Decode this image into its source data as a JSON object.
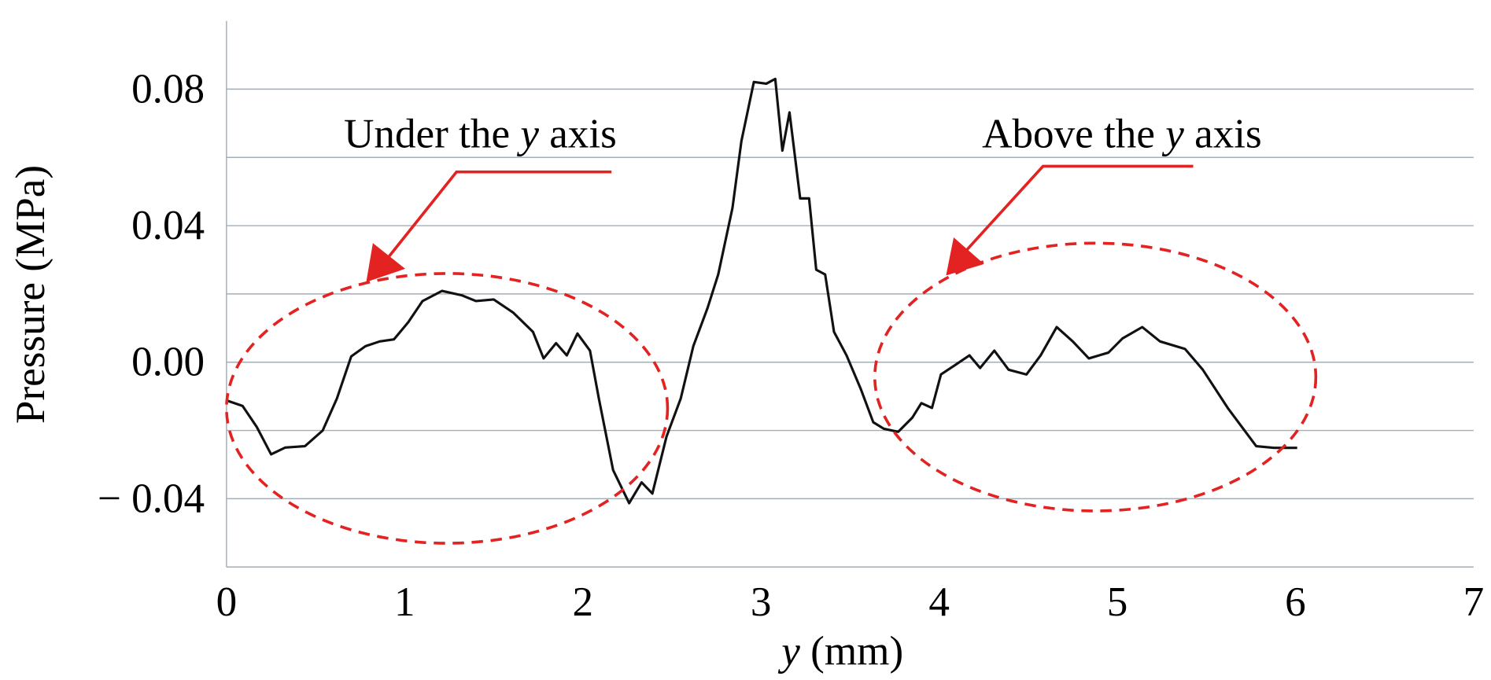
{
  "chart_data": {
    "type": "line",
    "x_label": [
      "y",
      " (mm)"
    ],
    "y_label": "Pressure (MPa)",
    "xlim": [
      0,
      7
    ],
    "xticks": [
      0,
      1,
      2,
      3,
      4,
      5,
      6,
      7
    ],
    "ylim": [
      -0.06,
      0.1
    ],
    "yticks": [
      {
        "value": 0.08,
        "label": "0.08"
      },
      {
        "value": 0.04,
        "label": "0.04"
      },
      {
        "value": 0,
        "label": "0.00"
      },
      {
        "value": -0.04,
        "label": "− 0.04"
      }
    ],
    "ygrid": [
      -0.04,
      -0.02,
      0,
      0.02,
      0.04,
      0.06,
      0.08
    ],
    "annotations": [
      {
        "parts": [
          "Under the ",
          "y",
          " axis"
        ],
        "color": "#e32222"
      },
      {
        "parts": [
          "Above the ",
          "y",
          " axis"
        ],
        "color": "#e32222"
      }
    ],
    "x": [
      0,
      0.09,
      0.17,
      0.25,
      0.33,
      0.44,
      0.54,
      0.62,
      0.7,
      0.78,
      0.86,
      0.94,
      1.02,
      1.1,
      1.21,
      1.32,
      1.4,
      1.5,
      1.61,
      1.72,
      1.78,
      1.85,
      1.91,
      1.97,
      2.04,
      2.09,
      2.17,
      2.26,
      2.33,
      2.39,
      2.47,
      2.55,
      2.62,
      2.7,
      2.76,
      2.84,
      2.89,
      2.96,
      3.03,
      3.08,
      3.12,
      3.16,
      3.22,
      3.27,
      3.31,
      3.36,
      3.41,
      3.48,
      3.56,
      3.63,
      3.69,
      3.77,
      3.85,
      3.9,
      3.96,
      4.01,
      4.09,
      4.17,
      4.23,
      4.31,
      4.39,
      4.49,
      4.57,
      4.66,
      4.75,
      4.84,
      4.95,
      5.03,
      5.14,
      5.24,
      5.38,
      5.48,
      5.62,
      5.78,
      5.88,
      6.01
    ],
    "series": [
      {
        "color": "#111111",
        "values": [
          -0.0112,
          -0.0128,
          -0.019,
          -0.027,
          -0.025,
          -0.0246,
          -0.02,
          -0.0106,
          0.0017,
          0.0047,
          0.0061,
          0.0067,
          0.0117,
          0.0179,
          0.0209,
          0.0196,
          0.0179,
          0.0184,
          0.0145,
          0.0089,
          0.0011,
          0.0056,
          0.002,
          0.0084,
          0.0034,
          -0.0106,
          -0.0316,
          -0.0413,
          -0.0352,
          -0.0385,
          -0.0218,
          -0.0106,
          0.0047,
          0.0159,
          0.0257,
          0.0452,
          0.0648,
          0.0821,
          0.0816,
          0.083,
          0.062,
          0.0732,
          0.048,
          0.048,
          0.0271,
          0.0257,
          0.0089,
          0.002,
          -0.0078,
          -0.0176,
          -0.0195,
          -0.0204,
          -0.0162,
          -0.012,
          -0.0134,
          -0.0036,
          -0.0008,
          0.002,
          -0.0017,
          0.0034,
          -0.0022,
          -0.0036,
          0.002,
          0.0103,
          0.0061,
          0.0011,
          0.0028,
          0.007,
          0.0103,
          0.0061,
          0.0039,
          -0.0022,
          -0.0134,
          -0.0246,
          -0.0251,
          -0.0251
        ]
      }
    ]
  }
}
